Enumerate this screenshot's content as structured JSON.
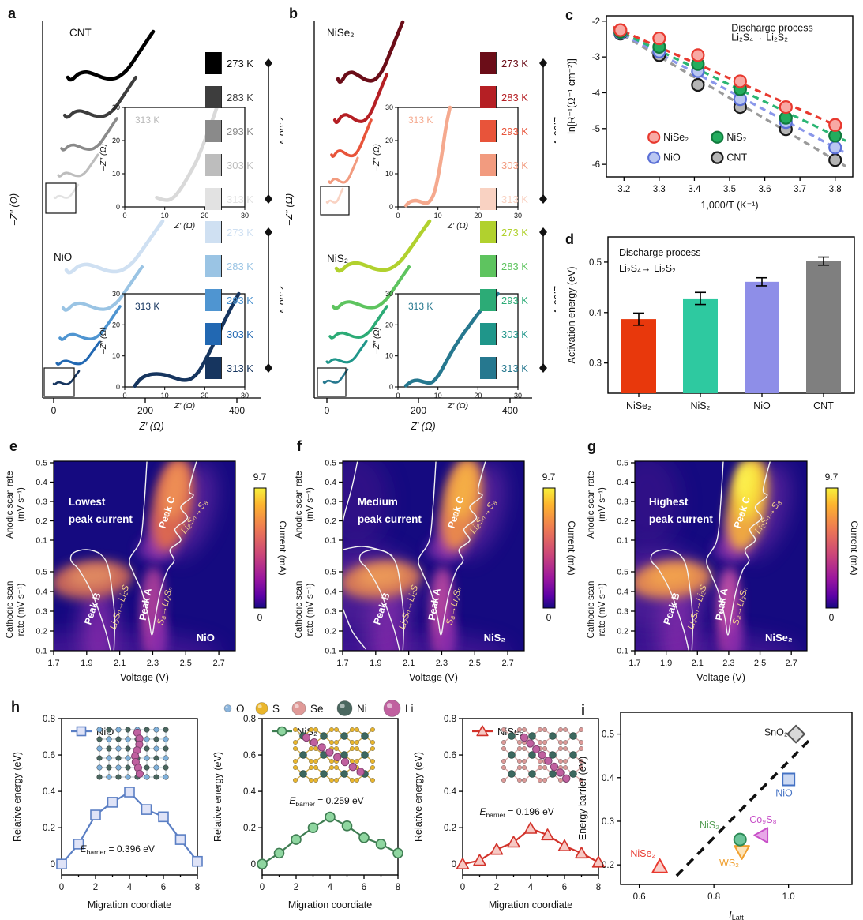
{
  "panels": {
    "a": {
      "letter": "a"
    },
    "b": {
      "letter": "b"
    },
    "c": {
      "letter": "c"
    },
    "d": {
      "letter": "d"
    },
    "e": {
      "letter": "e"
    },
    "f": {
      "letter": "f"
    },
    "g": {
      "letter": "g"
    },
    "h": {
      "letter": "h"
    },
    "i": {
      "letter": "i"
    }
  },
  "atom_legend": [
    {
      "name": "O",
      "color": "#8ab4dc",
      "r": 4.5
    },
    {
      "name": "S",
      "color": "#eab62c",
      "r": 7.5
    },
    {
      "name": "Se",
      "color": "#e09a98",
      "r": 8.5
    },
    {
      "name": "Ni",
      "color": "#4a675f",
      "r": 9.5
    },
    {
      "name": "Li",
      "color": "#c0609f",
      "r": 10.5
    }
  ],
  "chart_data": [
    {
      "panel": "a",
      "type": "nyquist",
      "xlabel": "Z′ (Ω)",
      "ylabel": "–Z″ (Ω)",
      "x_ticks": [
        "0",
        "200",
        "400"
      ],
      "groups": [
        {
          "name": "CNT",
          "voltage": "2.00 V",
          "temps": [
            "273 K",
            "283 K",
            "293 K",
            "303 K",
            "313 K"
          ],
          "colors": [
            "#000000",
            "#3d3d3d",
            "#8a8a8a",
            "#bdbdbd",
            "#e2e2e2"
          ],
          "inset": {
            "label": "313 K",
            "color": "#d9d9d9",
            "xlabel": "Z′ (Ω)",
            "ylabel": "–Z″ (Ω)",
            "tick_step": 10,
            "tick_max": 30,
            "curve": [
              [
                8,
                2.8
              ],
              [
                9.5,
                2.2
              ],
              [
                11,
                2.1
              ],
              [
                12.5,
                3.2
              ],
              [
                14,
                5.5
              ],
              [
                16,
                9.5
              ],
              [
                18,
                14
              ],
              [
                20,
                20
              ],
              [
                22,
                26.5
              ],
              [
                23,
                30
              ]
            ]
          }
        },
        {
          "name": "NiO",
          "voltage": "2.00 V",
          "temps": [
            "273 K",
            "283 K",
            "293 K",
            "303 K",
            "313 K"
          ],
          "colors": [
            "#cfe0f2",
            "#9ac4e4",
            "#4f95d1",
            "#2268b2",
            "#16355f"
          ],
          "inset": {
            "label": "313 K",
            "color": "#16355f",
            "xlabel": "Z′ (Ω)",
            "ylabel": "–Z″ (Ω)",
            "tick_step": 10,
            "tick_max": 30,
            "curve": [
              [
                2.5,
                0.3
              ],
              [
                4,
                2.6
              ],
              [
                6,
                3.9
              ],
              [
                8,
                4.2
              ],
              [
                10,
                3.9
              ],
              [
                12.5,
                2.9
              ],
              [
                14.5,
                2.2
              ],
              [
                16.5,
                2.6
              ],
              [
                18.5,
                5
              ],
              [
                20.5,
                9.5
              ],
              [
                23,
                16
              ],
              [
                26,
                24
              ],
              [
                28.5,
                30
              ]
            ]
          }
        }
      ]
    },
    {
      "panel": "b",
      "type": "nyquist",
      "xlabel": "Z′ (Ω)",
      "ylabel": "–Z″ (Ω)",
      "x_ticks": [
        "0",
        "200",
        "400"
      ],
      "groups": [
        {
          "name": "NiSe₂",
          "voltage": "2.00 V",
          "temps": [
            "273 K",
            "283 K",
            "293 K",
            "303 K",
            "313 K"
          ],
          "colors": [
            "#6b0d18",
            "#b51f24",
            "#e8543a",
            "#f29b7f",
            "#f9d2c2"
          ],
          "inset": {
            "label": "313 K",
            "color": "#f5a98e",
            "xlabel": "Z′ (Ω)",
            "ylabel": "–Z″ (Ω)",
            "tick_step": 10,
            "tick_max": 30,
            "curve": [
              [
                2,
                0.4
              ],
              [
                3,
                1.5
              ],
              [
                4.5,
                1.9
              ],
              [
                6,
                1.4
              ],
              [
                7,
                1.1
              ],
              [
                8,
                1.8
              ],
              [
                9,
                4
              ],
              [
                10,
                9
              ],
              [
                11,
                16
              ],
              [
                12,
                24
              ],
              [
                13,
                30
              ]
            ]
          }
        },
        {
          "name": "NiS₂",
          "voltage": "2.00 V",
          "temps": [
            "273 K",
            "283 K",
            "293 K",
            "303 K",
            "313 K"
          ],
          "colors": [
            "#b1d12e",
            "#5ec45f",
            "#2cab76",
            "#1f968a",
            "#26788f"
          ],
          "inset": {
            "label": "313 K",
            "color": "#26788f",
            "xlabel": "Z′ (Ω)",
            "ylabel": "–Z″ (Ω)",
            "tick_step": 10,
            "tick_max": 30,
            "curve": [
              [
                2,
                0.4
              ],
              [
                3.5,
                1.8
              ],
              [
                5,
                2.1
              ],
              [
                6.5,
                1.6
              ],
              [
                8,
                1.3
              ],
              [
                9,
                2
              ],
              [
                10.5,
                4.5
              ],
              [
                12,
                8
              ],
              [
                14,
                12.5
              ],
              [
                16,
                16.5
              ],
              [
                18,
                20
              ],
              [
                20,
                23.5
              ],
              [
                22,
                26.5
              ],
              [
                25,
                30
              ]
            ]
          }
        }
      ]
    },
    {
      "panel": "c",
      "type": "scatter",
      "title_lines": [
        "Discharge process",
        "Li₂S₄→ Li₂S₂"
      ],
      "xlabel": "1,000/T (K⁻¹)",
      "ylabel": "ln[R⁻¹(Ω⁻¹ cm⁻²)]",
      "x_ticks": [
        3.2,
        3.3,
        3.4,
        3.5,
        3.6,
        3.7,
        3.8
      ],
      "y_ticks": [
        -2,
        -3,
        -4,
        -5,
        -6
      ],
      "x": [
        3.19,
        3.3,
        3.41,
        3.53,
        3.66,
        3.8
      ],
      "series": [
        {
          "name": "CNT",
          "marker_fill": "#b5b5b5",
          "marker_stroke": "#1a1a1a",
          "line": "#9a9a9a",
          "values": [
            -2.35,
            -2.95,
            -3.78,
            -4.4,
            -5.02,
            -5.88
          ]
        },
        {
          "name": "NiO",
          "marker_fill": "#b9c6f2",
          "marker_stroke": "#5a6fd6",
          "line": "#8a97ea",
          "values": [
            -2.33,
            -2.85,
            -3.4,
            -4.18,
            -4.82,
            -5.53
          ]
        },
        {
          "name": "NiS₂",
          "marker_fill": "#23ad5e",
          "marker_stroke": "#117a3d",
          "line": "#2ab573",
          "values": [
            -2.3,
            -2.72,
            -3.2,
            -3.9,
            -4.7,
            -5.2
          ]
        },
        {
          "name": "NiSe₂",
          "marker_fill": "#f8a9a4",
          "marker_stroke": "#e8392f",
          "line": "#e8392f",
          "values": [
            -2.25,
            -2.48,
            -2.95,
            -3.68,
            -4.4,
            -4.9
          ]
        }
      ],
      "legend": [
        [
          "NiSe₂",
          "NiS₂"
        ],
        [
          "NiO",
          "CNT"
        ]
      ]
    },
    {
      "panel": "d",
      "type": "bar",
      "title_lines": [
        "Discharge process",
        "Li₂S₄→ Li₂S₂"
      ],
      "ylabel": "Activation energy (eV)",
      "y_ticks": [
        0.3,
        0.4,
        0.5
      ],
      "ylim": [
        0.24,
        0.55
      ],
      "categories": [
        "NiSe₂",
        "NiS₂",
        "NiO",
        "CNT"
      ],
      "values": [
        0.387,
        0.428,
        0.461,
        0.502
      ],
      "errors": [
        0.012,
        0.012,
        0.008,
        0.008
      ],
      "colors": [
        "#e8380c",
        "#2ec9a0",
        "#8e8ee8",
        "#7f7f7f"
      ]
    },
    {
      "panel": "e",
      "type": "heatmap",
      "intensity": "lowest",
      "note_lines": [
        "Lowest",
        "peak current"
      ],
      "material": "NiO",
      "xlabel": "Voltage (V)",
      "x_ticks": [
        1.7,
        1.9,
        2.1,
        2.3,
        2.5,
        2.7
      ],
      "y_top_label": [
        "Anodic scan rate",
        "(mV s⁻¹)"
      ],
      "y_bottom_label": [
        "Cathodic scan",
        "rate (mV s⁻¹)"
      ],
      "y_ticks": [
        0.5,
        0.4,
        0.3,
        0.2,
        0.1
      ],
      "peak_labels": [
        "Peak B",
        "Peak A",
        "Peak C"
      ],
      "transition_labels": [
        "Li₂Sₙ→Li₂S",
        "S₈→Li₂Sₙ",
        "Li₂Sₙ→S₈"
      ],
      "colorbar": {
        "label": "Current (mA)",
        "max": "9.7",
        "min": "0"
      }
    },
    {
      "panel": "f",
      "type": "heatmap",
      "intensity": "medium",
      "note_lines": [
        "Medium",
        "peak current"
      ],
      "material": "NiS₂",
      "xlabel": "Voltage (V)",
      "x_ticks": [
        1.7,
        1.9,
        2.1,
        2.3,
        2.5,
        2.7
      ],
      "y_top_label": [
        "Anodic scan rate",
        "(mV s⁻¹)"
      ],
      "y_bottom_label": [
        "Cathodic scan",
        "rate (mV s⁻¹)"
      ],
      "y_ticks": [
        0.5,
        0.4,
        0.3,
        0.2,
        0.1
      ],
      "peak_labels": [
        "Peak B",
        "Peak A",
        "Peak C"
      ],
      "transition_labels": [
        "Li₂Sₙ→Li₂S",
        "S₈→Li₂Sₙ",
        "Li₂Sₙ→S₈"
      ],
      "colorbar": {
        "label": "Current (mA)",
        "max": "9.7",
        "min": "0"
      }
    },
    {
      "panel": "g",
      "type": "heatmap",
      "intensity": "highest",
      "note_lines": [
        "Highest",
        "peak current"
      ],
      "material": "NiSe₂",
      "xlabel": "Voltage (V)",
      "x_ticks": [
        1.7,
        1.9,
        2.1,
        2.3,
        2.5,
        2.7
      ],
      "y_top_label": [
        "Anodic scan rate",
        "(mV s⁻¹)"
      ],
      "y_bottom_label": [
        "Cathodic scan",
        "rate (mV s⁻¹)"
      ],
      "y_ticks": [
        0.5,
        0.4,
        0.3,
        0.2,
        0.1
      ],
      "peak_labels": [
        "Peak B",
        "Peak A",
        "Peak C"
      ],
      "transition_labels": [
        "Li₂Sₙ→Li₂S",
        "S₈→Li₂Sₙ",
        "Li₂Sₙ→S₈"
      ],
      "colorbar": {
        "label": "Current (mA)",
        "max": "9.7",
        "min": "0"
      }
    },
    {
      "panel": "h",
      "type": "line",
      "xlabel": "Migration coordiate",
      "ylabel": "Relative energy (eV)",
      "x_ticks": [
        0,
        2,
        4,
        6,
        8
      ],
      "y_ticks": [
        0,
        0.2,
        0.4,
        0.6,
        0.8
      ],
      "ylim": [
        -0.06,
        0.8
      ],
      "series": [
        {
          "name": "NiO",
          "marker": "square",
          "stroke": "#5b7fc4",
          "fill": "#dfe3f7",
          "inset": "NiO",
          "barrier_prefix": "E",
          "barrier_sub": "barrier",
          "barrier_rest": " = 0.396 eV",
          "x": [
            0,
            1,
            2,
            3,
            4,
            5,
            6,
            7,
            8
          ],
          "values": [
            0,
            0.11,
            0.27,
            0.34,
            0.396,
            0.3,
            0.26,
            0.135,
            0.015
          ]
        },
        {
          "name": "NiS₂",
          "marker": "circle",
          "stroke": "#3f7d52",
          "fill": "#8fd6a0",
          "inset": "NiS2",
          "barrier_prefix": "E",
          "barrier_sub": "barrier",
          "barrier_rest": " = 0.259 eV",
          "x": [
            0,
            1,
            2,
            3,
            4,
            5,
            6,
            7,
            8
          ],
          "values": [
            0,
            0.06,
            0.135,
            0.2,
            0.259,
            0.21,
            0.145,
            0.11,
            0.06
          ]
        },
        {
          "name": "NiSe₂",
          "marker": "triangle-up",
          "stroke": "#d2322a",
          "fill": "#f6c9c4",
          "inset": "NiSe2",
          "barrier_prefix": "E",
          "barrier_sub": "barrier",
          "barrier_rest": " = 0.196 eV",
          "x": [
            0,
            1,
            2,
            3,
            4,
            5,
            6,
            7,
            8
          ],
          "values": [
            0,
            0.02,
            0.08,
            0.12,
            0.196,
            0.16,
            0.1,
            0.06,
            0.01
          ]
        }
      ]
    },
    {
      "panel": "i",
      "type": "scatter",
      "ylabel": "Energy barrier (eV)",
      "xlabel_prefix": "I",
      "xlabel_sub": "Latt",
      "x_ticks": [
        0.6,
        0.8,
        1.0
      ],
      "y_ticks": [
        0.2,
        0.3,
        0.4,
        0.5
      ],
      "xlim": [
        0.55,
        1.17
      ],
      "ylim": [
        0.155,
        0.55
      ],
      "trend": {
        "x1": 0.7,
        "y1": 0.175,
        "x2": 1.06,
        "y2": 0.49
      },
      "points": [
        {
          "name": "NiSe₂",
          "x": 0.655,
          "y": 0.196,
          "marker": "triangle-up",
          "stroke": "#e8392f",
          "fill": "#f9d0cb",
          "label_color": "#e8392f"
        },
        {
          "name": "WS₂",
          "x": 0.875,
          "y": 0.23,
          "marker": "triangle-down",
          "stroke": "#f0a030",
          "fill": "#fce3b8",
          "label_color": "#f0a030"
        },
        {
          "name": "NiS₂",
          "x": 0.87,
          "y": 0.258,
          "marker": "circle",
          "stroke": "#2e8b57",
          "fill": "#6cc49a",
          "label_color": "#5aa05a"
        },
        {
          "name": "Co₉S₈",
          "x": 0.928,
          "y": 0.268,
          "marker": "triangle-left",
          "stroke": "#c850c8",
          "fill": "#e8a8e8",
          "label_color": "#c850c8"
        },
        {
          "name": "NiO",
          "x": 1.0,
          "y": 0.396,
          "marker": "square",
          "stroke": "#4472c4",
          "fill": "#ccd9f2",
          "label_color": "#4472c4"
        },
        {
          "name": "SnO₂",
          "x": 1.02,
          "y": 0.5,
          "marker": "diamond",
          "stroke": "#555555",
          "fill": "#d8d8d8",
          "label_color": "#222222"
        }
      ]
    }
  ]
}
